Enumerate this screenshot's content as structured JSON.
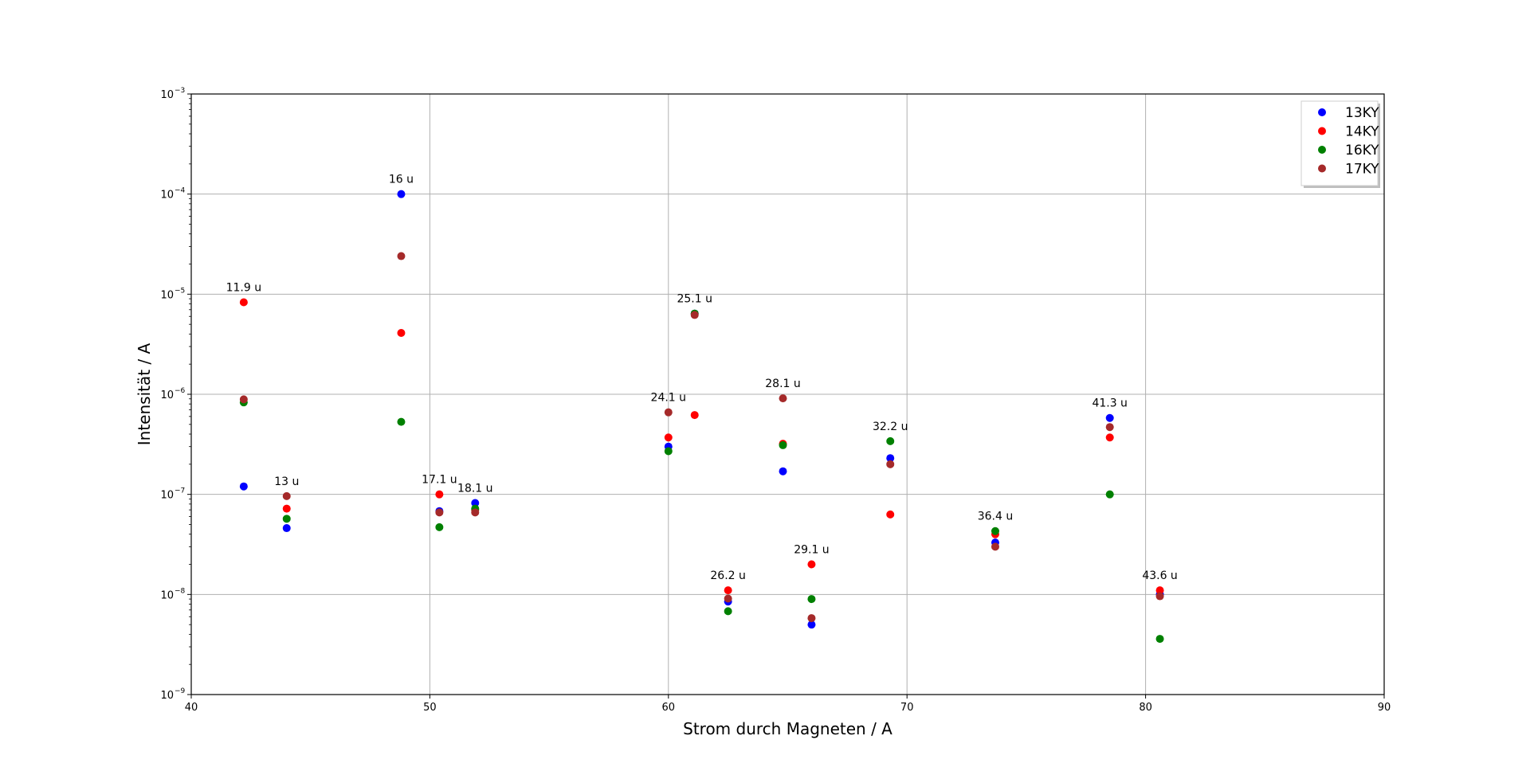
{
  "chart_data": {
    "type": "scatter",
    "xlabel": "Strom durch Magneten / A",
    "ylabel": "Intensität / A",
    "xlim": [
      40,
      90
    ],
    "ylim": [
      1e-09,
      0.001
    ],
    "yscale": "log",
    "grid": true,
    "legend_position": "top-right",
    "x_ticks": [
      "40",
      "50",
      "60",
      "70",
      "80",
      "90"
    ],
    "y_ticks": [
      {
        "base": "10",
        "exp": "−9"
      },
      {
        "base": "10",
        "exp": "−8"
      },
      {
        "base": "10",
        "exp": "−7"
      },
      {
        "base": "10",
        "exp": "−6"
      },
      {
        "base": "10",
        "exp": "−5"
      },
      {
        "base": "10",
        "exp": "−4"
      },
      {
        "base": "10",
        "exp": "−3"
      }
    ],
    "x": [
      42.2,
      44.0,
      48.8,
      50.4,
      51.9,
      60.0,
      61.1,
      62.5,
      64.8,
      66.0,
      69.3,
      73.7,
      78.5,
      80.6
    ],
    "series": [
      {
        "name": "13KY",
        "color": "#0000ff",
        "values": [
          1.2e-07,
          4.6e-08,
          0.0001,
          6.8e-08,
          8.2e-08,
          3e-07,
          6.4e-06,
          8.5e-09,
          1.7e-07,
          5e-09,
          2.3e-07,
          3.3e-08,
          5.8e-07,
          1e-08
        ]
      },
      {
        "name": "14KY",
        "color": "#ff0000",
        "values": [
          8.3e-06,
          7.2e-08,
          4.1e-06,
          1e-07,
          7e-08,
          3.7e-07,
          6.2e-07,
          1.1e-08,
          3.2e-07,
          2e-08,
          6.3e-08,
          4e-08,
          3.7e-07,
          1.1e-08
        ]
      },
      {
        "name": "16KY",
        "color": "#008000",
        "values": [
          8.3e-07,
          5.7e-08,
          5.3e-07,
          4.7e-08,
          7.2e-08,
          2.7e-07,
          6.4e-06,
          6.8e-09,
          3.1e-07,
          9e-09,
          3.4e-07,
          4.3e-08,
          1e-07,
          3.6e-09
        ]
      },
      {
        "name": "17KY",
        "color": "#a52a2a",
        "values": [
          8.9e-07,
          9.6e-08,
          2.4e-05,
          6.6e-08,
          6.6e-08,
          6.6e-07,
          6.2e-06,
          9.1e-09,
          9.1e-07,
          5.8e-09,
          2e-07,
          3e-08,
          4.7e-07,
          9.6e-09
        ]
      }
    ],
    "annotations": [
      {
        "text": "11.9 u",
        "x": 42.2,
        "y": 8.3e-06
      },
      {
        "text": "13 u",
        "x": 44.0,
        "y": 9.6e-08
      },
      {
        "text": "16 u",
        "x": 48.8,
        "y": 0.0001
      },
      {
        "text": "17.1 u",
        "x": 50.4,
        "y": 1e-07
      },
      {
        "text": "18.1 u",
        "x": 51.9,
        "y": 8.2e-08
      },
      {
        "text": "24.1 u",
        "x": 60.0,
        "y": 6.6e-07
      },
      {
        "text": "25.1 u",
        "x": 61.1,
        "y": 6.4e-06
      },
      {
        "text": "26.2 u",
        "x": 62.5,
        "y": 1.1e-08
      },
      {
        "text": "28.1 u",
        "x": 64.8,
        "y": 9.1e-07
      },
      {
        "text": "29.1 u",
        "x": 66.0,
        "y": 2e-08
      },
      {
        "text": "32.2 u",
        "x": 69.3,
        "y": 3.4e-07
      },
      {
        "text": "36.4 u",
        "x": 73.7,
        "y": 4.3e-08
      },
      {
        "text": "41.3 u",
        "x": 78.5,
        "y": 5.8e-07
      },
      {
        "text": "43.6 u",
        "x": 80.6,
        "y": 1.1e-08
      }
    ]
  }
}
